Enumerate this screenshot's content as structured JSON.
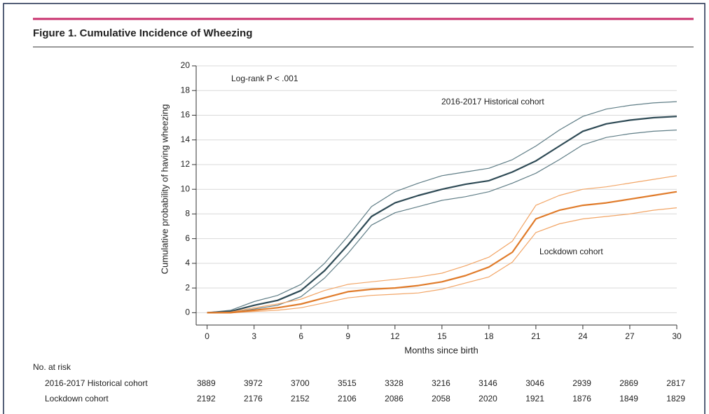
{
  "chart_data": {
    "type": "line",
    "title": "Figure 1. Cumulative Incidence of Wheezing",
    "xlabel": "Months since birth",
    "ylabel": "Cumulative probability of having wheezing",
    "annotation": "Log-rank P < .001",
    "x": [
      0,
      1.5,
      3,
      4.5,
      6,
      7.5,
      9,
      10.5,
      12,
      13.5,
      15,
      16.5,
      18,
      19.5,
      21,
      22.5,
      24,
      25.5,
      27,
      28.5,
      30
    ],
    "series": [
      {
        "name": "2016-2017 Historical cohort",
        "color": "#2e4a55",
        "ci_color": "#5f7d86",
        "values": [
          0,
          0.1,
          0.6,
          1.0,
          1.8,
          3.4,
          5.5,
          7.8,
          8.9,
          9.5,
          10.0,
          10.4,
          10.7,
          11.4,
          12.3,
          13.5,
          14.7,
          15.3,
          15.6,
          15.8,
          15.9
        ],
        "upper": [
          0,
          0.2,
          0.9,
          1.4,
          2.3,
          4.0,
          6.2,
          8.6,
          9.8,
          10.5,
          11.1,
          11.4,
          11.7,
          12.4,
          13.5,
          14.8,
          15.9,
          16.5,
          16.8,
          17.0,
          17.1
        ],
        "lower": [
          0,
          0,
          0.3,
          0.6,
          1.3,
          2.8,
          4.8,
          7.1,
          8.1,
          8.6,
          9.1,
          9.4,
          9.8,
          10.5,
          11.3,
          12.4,
          13.6,
          14.2,
          14.5,
          14.7,
          14.8
        ]
      },
      {
        "name": "Lockdown cohort",
        "color": "#e07b2a",
        "ci_color": "#f2a566",
        "values": [
          0,
          0,
          0.2,
          0.4,
          0.7,
          1.2,
          1.7,
          1.9,
          2.0,
          2.2,
          2.5,
          3.0,
          3.7,
          4.9,
          7.6,
          8.3,
          8.7,
          8.9,
          9.2,
          9.5,
          9.8
        ],
        "upper": [
          0,
          0.05,
          0.4,
          0.7,
          1.1,
          1.8,
          2.3,
          2.5,
          2.7,
          2.9,
          3.2,
          3.8,
          4.5,
          5.8,
          8.7,
          9.5,
          10.0,
          10.2,
          10.5,
          10.8,
          11.1
        ],
        "lower": [
          0,
          0,
          0.1,
          0.2,
          0.4,
          0.8,
          1.2,
          1.4,
          1.5,
          1.6,
          1.9,
          2.4,
          2.9,
          4.1,
          6.5,
          7.2,
          7.6,
          7.8,
          8.0,
          8.3,
          8.5
        ]
      }
    ],
    "xlim": [
      -0.7,
      30
    ],
    "xticks": [
      0,
      3,
      6,
      9,
      12,
      15,
      18,
      21,
      24,
      27,
      30
    ],
    "ylim": [
      -1,
      20
    ],
    "yticks": [
      0,
      2,
      4,
      6,
      8,
      10,
      12,
      14,
      16,
      18,
      20
    ],
    "grid": true,
    "risk_table": {
      "title": "No. at risk",
      "rows": [
        {
          "name": "2016-2017 Historical cohort",
          "values": [
            3889,
            3972,
            3700,
            3515,
            3328,
            3216,
            3146,
            3046,
            2939,
            2869,
            2817
          ]
        },
        {
          "name": "Lockdown cohort",
          "values": [
            2192,
            2176,
            2152,
            2106,
            2086,
            2058,
            2020,
            1921,
            1876,
            1849,
            1829
          ]
        }
      ]
    }
  }
}
